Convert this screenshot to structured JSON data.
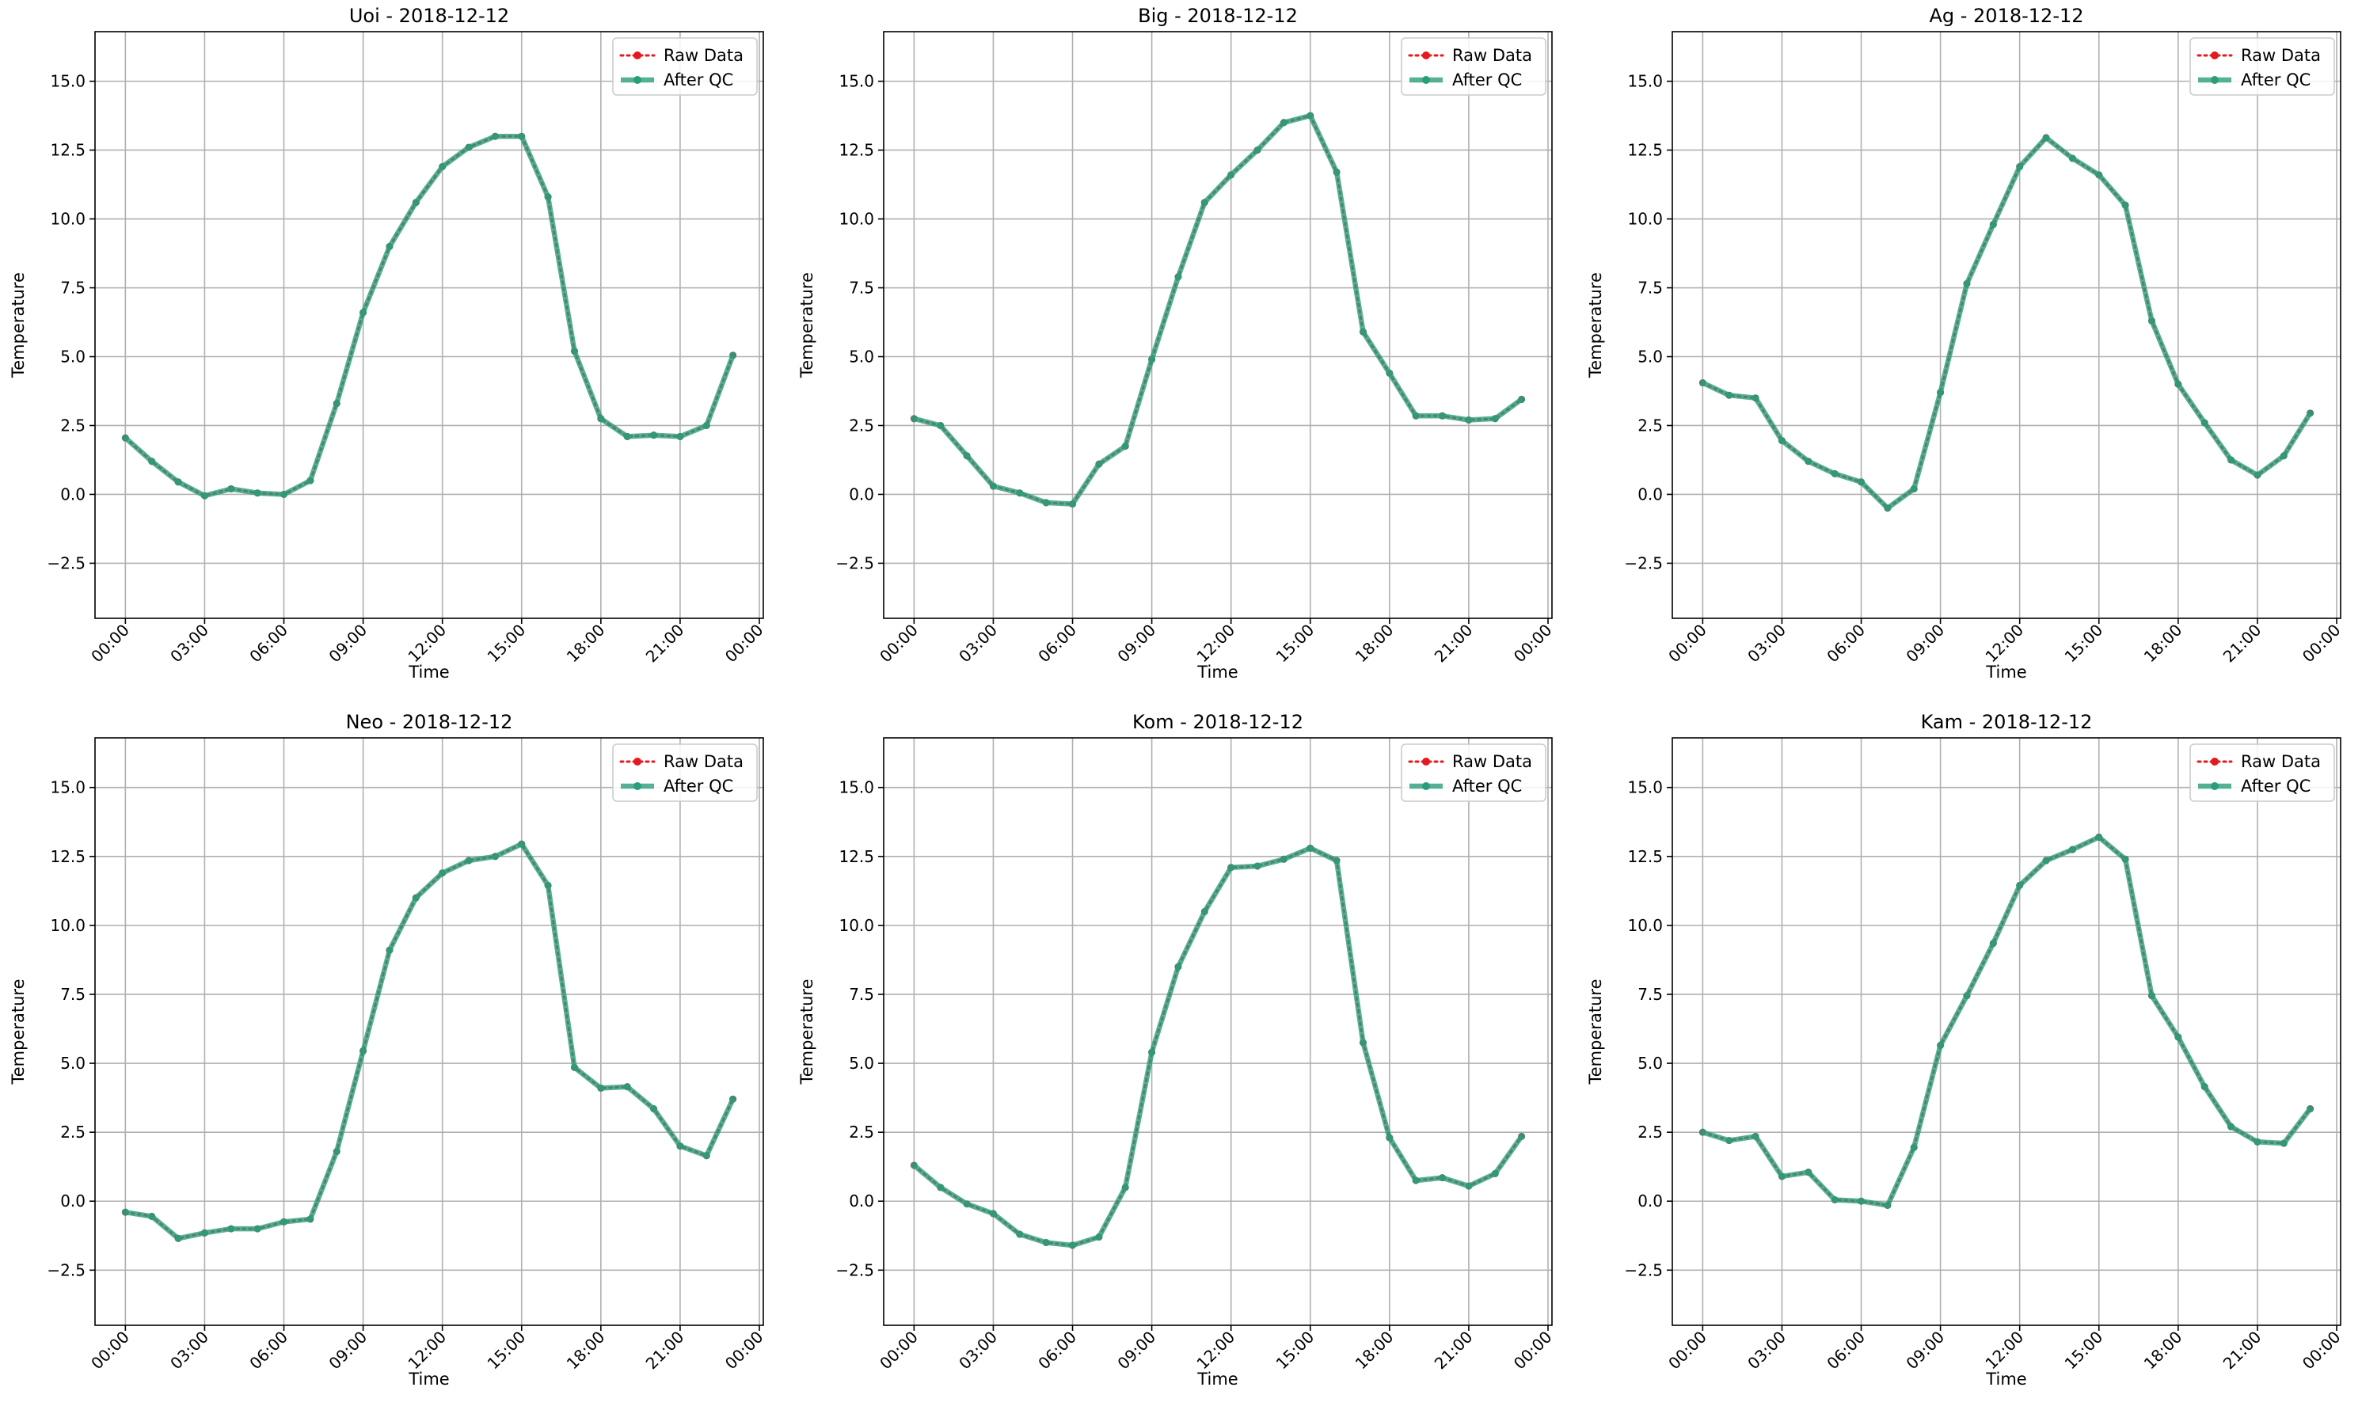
{
  "figure": {
    "colors": {
      "raw_data": "#e41a1c",
      "after_qc": "#2a9d7a",
      "grid": "#b0b0b0",
      "axes": "#000000",
      "legend_border": "#cccccc"
    }
  },
  "chart_data": [
    {
      "type": "line",
      "title": "Uoi - 2018-12-12",
      "xlabel": "Time",
      "ylabel": "Temperature",
      "x_tick_labels": [
        "00:00",
        "03:00",
        "06:00",
        "09:00",
        "12:00",
        "15:00",
        "18:00",
        "21:00",
        "00:00"
      ],
      "x_tick_hours": [
        0,
        3,
        6,
        9,
        12,
        15,
        18,
        21,
        24
      ],
      "x_hours": [
        0,
        1,
        2,
        3,
        4,
        5,
        6,
        7,
        8,
        9,
        10,
        11,
        12,
        13,
        14,
        15,
        16,
        17,
        18,
        19,
        20,
        21,
        22,
        23
      ],
      "xlim": [
        -1.15,
        24.15
      ],
      "y_ticks": [
        -2.5,
        0.0,
        2.5,
        5.0,
        7.5,
        10.0,
        12.5,
        15.0
      ],
      "y_tick_labels": [
        "−2.5",
        "0.0",
        "2.5",
        "5.0",
        "7.5",
        "10.0",
        "12.5",
        "15.0"
      ],
      "ylim": [
        -4.5,
        16.8
      ],
      "grid": true,
      "legend": {
        "position": "top-right",
        "entries": [
          "Raw Data",
          "After QC"
        ]
      },
      "series": [
        {
          "name": "Raw Data",
          "style": "dotted-marker",
          "color": "#e41a1c",
          "values": [
            2.05,
            1.2,
            0.45,
            -0.05,
            0.2,
            0.05,
            0.0,
            0.5,
            3.3,
            6.6,
            9.0,
            10.6,
            11.9,
            12.6,
            13.0,
            13.0,
            10.8,
            5.2,
            2.75,
            2.1,
            2.15,
            2.1,
            2.5,
            5.05
          ]
        },
        {
          "name": "After QC",
          "style": "solid",
          "color": "#2a9d7a",
          "values": [
            2.05,
            1.2,
            0.45,
            -0.05,
            0.2,
            0.05,
            0.0,
            0.5,
            3.3,
            6.6,
            9.0,
            10.6,
            11.9,
            12.6,
            13.0,
            13.0,
            10.8,
            5.2,
            2.75,
            2.1,
            2.15,
            2.1,
            2.5,
            5.05
          ]
        }
      ]
    },
    {
      "type": "line",
      "title": "Big - 2018-12-12",
      "xlabel": "Time",
      "ylabel": "Temperature",
      "x_tick_labels": [
        "00:00",
        "03:00",
        "06:00",
        "09:00",
        "12:00",
        "15:00",
        "18:00",
        "21:00",
        "00:00"
      ],
      "x_tick_hours": [
        0,
        3,
        6,
        9,
        12,
        15,
        18,
        21,
        24
      ],
      "x_hours": [
        0,
        1,
        2,
        3,
        4,
        5,
        6,
        7,
        8,
        9,
        10,
        11,
        12,
        13,
        14,
        15,
        16,
        17,
        18,
        19,
        20,
        21,
        22,
        23
      ],
      "xlim": [
        -1.15,
        24.15
      ],
      "y_ticks": [
        -2.5,
        0.0,
        2.5,
        5.0,
        7.5,
        10.0,
        12.5,
        15.0
      ],
      "y_tick_labels": [
        "−2.5",
        "0.0",
        "2.5",
        "5.0",
        "7.5",
        "10.0",
        "12.5",
        "15.0"
      ],
      "ylim": [
        -4.5,
        16.8
      ],
      "grid": true,
      "legend": {
        "position": "top-right",
        "entries": [
          "Raw Data",
          "After QC"
        ]
      },
      "series": [
        {
          "name": "Raw Data",
          "style": "dotted-marker",
          "color": "#e41a1c",
          "values": [
            2.75,
            2.5,
            1.4,
            0.3,
            0.05,
            -0.3,
            -0.35,
            1.1,
            1.75,
            4.9,
            7.9,
            10.6,
            11.6,
            12.5,
            13.5,
            13.75,
            11.7,
            5.9,
            4.4,
            2.85,
            2.85,
            2.7,
            2.75,
            3.45
          ]
        },
        {
          "name": "After QC",
          "style": "solid",
          "color": "#2a9d7a",
          "values": [
            2.75,
            2.5,
            1.4,
            0.3,
            0.05,
            -0.3,
            -0.35,
            1.1,
            1.75,
            4.9,
            7.9,
            10.6,
            11.6,
            12.5,
            13.5,
            13.75,
            11.7,
            5.9,
            4.4,
            2.85,
            2.85,
            2.7,
            2.75,
            3.45
          ]
        }
      ]
    },
    {
      "type": "line",
      "title": "Ag - 2018-12-12",
      "xlabel": "Time",
      "ylabel": "Temperature",
      "x_tick_labels": [
        "00:00",
        "03:00",
        "06:00",
        "09:00",
        "12:00",
        "15:00",
        "18:00",
        "21:00",
        "00:00"
      ],
      "x_tick_hours": [
        0,
        3,
        6,
        9,
        12,
        15,
        18,
        21,
        24
      ],
      "x_hours": [
        0,
        1,
        2,
        3,
        4,
        5,
        6,
        7,
        8,
        9,
        10,
        11,
        12,
        13,
        14,
        15,
        16,
        17,
        18,
        19,
        20,
        21,
        22,
        23
      ],
      "xlim": [
        -1.15,
        24.15
      ],
      "y_ticks": [
        -2.5,
        0.0,
        2.5,
        5.0,
        7.5,
        10.0,
        12.5,
        15.0
      ],
      "y_tick_labels": [
        "−2.5",
        "0.0",
        "2.5",
        "5.0",
        "7.5",
        "10.0",
        "12.5",
        "15.0"
      ],
      "ylim": [
        -4.5,
        16.8
      ],
      "grid": true,
      "legend": {
        "position": "top-right",
        "entries": [
          "Raw Data",
          "After QC"
        ]
      },
      "series": [
        {
          "name": "Raw Data",
          "style": "dotted-marker",
          "color": "#e41a1c",
          "values": [
            4.05,
            3.6,
            3.5,
            1.95,
            1.2,
            0.75,
            0.45,
            -0.5,
            0.2,
            3.7,
            7.65,
            9.8,
            11.9,
            12.95,
            12.2,
            11.6,
            10.5,
            6.3,
            4.0,
            2.6,
            1.25,
            0.7,
            1.4,
            2.95
          ]
        },
        {
          "name": "After QC",
          "style": "solid",
          "color": "#2a9d7a",
          "values": [
            4.05,
            3.6,
            3.5,
            1.95,
            1.2,
            0.75,
            0.45,
            -0.5,
            0.2,
            3.7,
            7.65,
            9.8,
            11.9,
            12.95,
            12.2,
            11.6,
            10.5,
            6.3,
            4.0,
            2.6,
            1.25,
            0.7,
            1.4,
            2.95
          ]
        }
      ]
    },
    {
      "type": "line",
      "title": "Neo - 2018-12-12",
      "xlabel": "Time",
      "ylabel": "Temperature",
      "x_tick_labels": [
        "00:00",
        "03:00",
        "06:00",
        "09:00",
        "12:00",
        "15:00",
        "18:00",
        "21:00",
        "00:00"
      ],
      "x_tick_hours": [
        0,
        3,
        6,
        9,
        12,
        15,
        18,
        21,
        24
      ],
      "x_hours": [
        0,
        1,
        2,
        3,
        4,
        5,
        6,
        7,
        8,
        9,
        10,
        11,
        12,
        13,
        14,
        15,
        16,
        17,
        18,
        19,
        20,
        21,
        22,
        23
      ],
      "xlim": [
        -1.15,
        24.15
      ],
      "y_ticks": [
        -2.5,
        0.0,
        2.5,
        5.0,
        7.5,
        10.0,
        12.5,
        15.0
      ],
      "y_tick_labels": [
        "−2.5",
        "0.0",
        "2.5",
        "5.0",
        "7.5",
        "10.0",
        "12.5",
        "15.0"
      ],
      "ylim": [
        -4.5,
        16.8
      ],
      "grid": true,
      "legend": {
        "position": "top-right",
        "entries": [
          "Raw Data",
          "After QC"
        ]
      },
      "series": [
        {
          "name": "Raw Data",
          "style": "dotted-marker",
          "color": "#e41a1c",
          "values": [
            -0.4,
            -0.55,
            -1.35,
            -1.15,
            -1.0,
            -1.0,
            -0.75,
            -0.65,
            1.8,
            5.45,
            9.1,
            11.0,
            11.9,
            12.35,
            12.5,
            12.95,
            11.45,
            4.85,
            4.1,
            4.15,
            3.35,
            2.0,
            1.65,
            3.7
          ]
        },
        {
          "name": "After QC",
          "style": "solid",
          "color": "#2a9d7a",
          "values": [
            -0.4,
            -0.55,
            -1.35,
            -1.15,
            -1.0,
            -1.0,
            -0.75,
            -0.65,
            1.8,
            5.45,
            9.1,
            11.0,
            11.9,
            12.35,
            12.5,
            12.95,
            11.45,
            4.85,
            4.1,
            4.15,
            3.35,
            2.0,
            1.65,
            3.7
          ]
        }
      ]
    },
    {
      "type": "line",
      "title": "Kom - 2018-12-12",
      "xlabel": "Time",
      "ylabel": "Temperature",
      "x_tick_labels": [
        "00:00",
        "03:00",
        "06:00",
        "09:00",
        "12:00",
        "15:00",
        "18:00",
        "21:00",
        "00:00"
      ],
      "x_tick_hours": [
        0,
        3,
        6,
        9,
        12,
        15,
        18,
        21,
        24
      ],
      "x_hours": [
        0,
        1,
        2,
        3,
        4,
        5,
        6,
        7,
        8,
        9,
        10,
        11,
        12,
        13,
        14,
        15,
        16,
        17,
        18,
        19,
        20,
        21,
        22,
        23
      ],
      "xlim": [
        -1.15,
        24.15
      ],
      "y_ticks": [
        -2.5,
        0.0,
        2.5,
        5.0,
        7.5,
        10.0,
        12.5,
        15.0
      ],
      "y_tick_labels": [
        "−2.5",
        "0.0",
        "2.5",
        "5.0",
        "7.5",
        "10.0",
        "12.5",
        "15.0"
      ],
      "ylim": [
        -4.5,
        16.8
      ],
      "grid": true,
      "legend": {
        "position": "top-right",
        "entries": [
          "Raw Data",
          "After QC"
        ]
      },
      "series": [
        {
          "name": "Raw Data",
          "style": "dotted-marker",
          "color": "#e41a1c",
          "values": [
            1.3,
            0.5,
            -0.1,
            -0.45,
            -1.2,
            -1.5,
            -1.6,
            -1.3,
            0.5,
            5.4,
            8.5,
            10.5,
            12.1,
            12.15,
            12.4,
            12.8,
            12.35,
            5.75,
            2.3,
            0.75,
            0.85,
            0.55,
            1.0,
            2.35
          ]
        },
        {
          "name": "After QC",
          "style": "solid",
          "color": "#2a9d7a",
          "values": [
            1.3,
            0.5,
            -0.1,
            -0.45,
            -1.2,
            -1.5,
            -1.6,
            -1.3,
            0.5,
            5.4,
            8.5,
            10.5,
            12.1,
            12.15,
            12.4,
            12.8,
            12.35,
            5.75,
            2.3,
            0.75,
            0.85,
            0.55,
            1.0,
            2.35
          ]
        }
      ]
    },
    {
      "type": "line",
      "title": "Kam - 2018-12-12",
      "xlabel": "Time",
      "ylabel": "Temperature",
      "x_tick_labels": [
        "00:00",
        "03:00",
        "06:00",
        "09:00",
        "12:00",
        "15:00",
        "18:00",
        "21:00",
        "00:00"
      ],
      "x_tick_hours": [
        0,
        3,
        6,
        9,
        12,
        15,
        18,
        21,
        24
      ],
      "x_hours": [
        0,
        1,
        2,
        3,
        4,
        5,
        6,
        7,
        8,
        9,
        10,
        11,
        12,
        13,
        14,
        15,
        16,
        17,
        18,
        19,
        20,
        21,
        22,
        23
      ],
      "xlim": [
        -1.15,
        24.15
      ],
      "y_ticks": [
        -2.5,
        0.0,
        2.5,
        5.0,
        7.5,
        10.0,
        12.5,
        15.0
      ],
      "y_tick_labels": [
        "−2.5",
        "0.0",
        "2.5",
        "5.0",
        "7.5",
        "10.0",
        "12.5",
        "15.0"
      ],
      "ylim": [
        -4.5,
        16.8
      ],
      "grid": true,
      "legend": {
        "position": "top-right",
        "entries": [
          "Raw Data",
          "After QC"
        ]
      },
      "series": [
        {
          "name": "Raw Data",
          "style": "dotted-marker",
          "color": "#e41a1c",
          "values": [
            2.5,
            2.2,
            2.35,
            0.9,
            1.05,
            0.05,
            0.0,
            -0.15,
            1.95,
            5.65,
            7.45,
            9.35,
            11.45,
            12.35,
            12.75,
            13.2,
            12.4,
            7.45,
            5.95,
            4.15,
            2.7,
            2.15,
            2.1,
            3.35
          ]
        },
        {
          "name": "After QC",
          "style": "solid",
          "color": "#2a9d7a",
          "values": [
            2.5,
            2.2,
            2.35,
            0.9,
            1.05,
            0.05,
            0.0,
            -0.15,
            1.95,
            5.65,
            7.45,
            9.35,
            11.45,
            12.35,
            12.75,
            13.2,
            12.4,
            7.45,
            5.95,
            4.15,
            2.7,
            2.15,
            2.1,
            3.35
          ]
        }
      ]
    }
  ]
}
